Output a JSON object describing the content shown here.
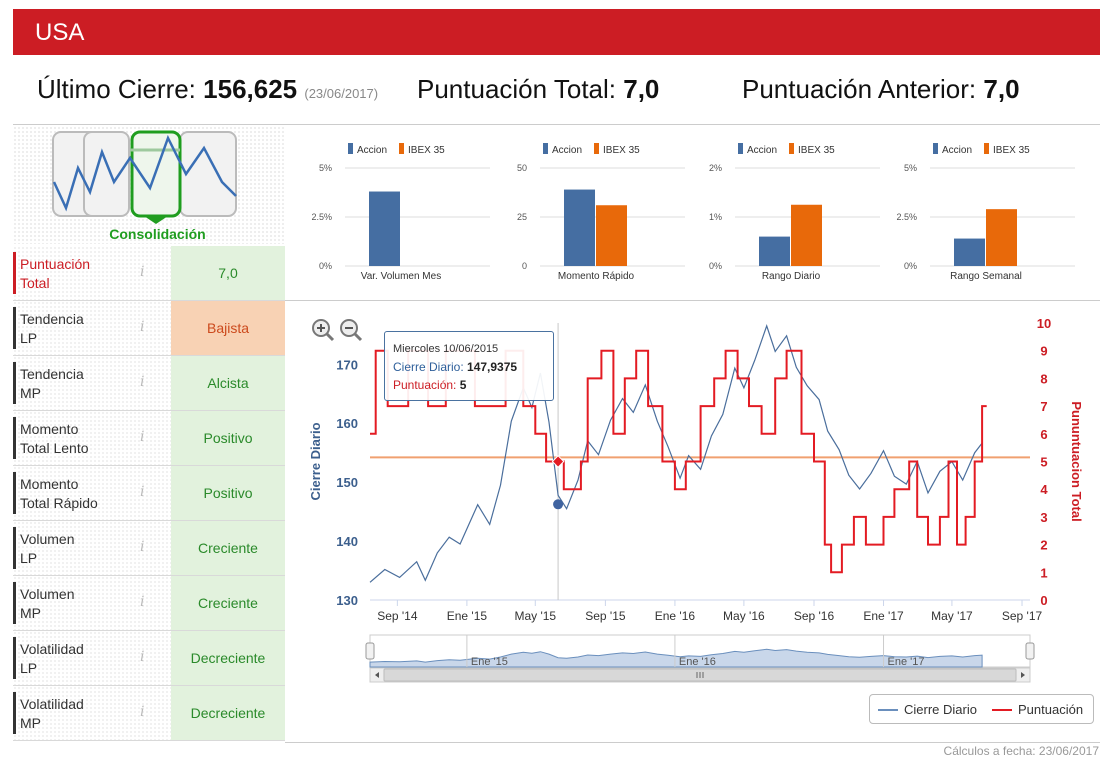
{
  "header": {
    "title": "USA"
  },
  "summary": {
    "last_close_label": "Último Cierre:",
    "last_close_value": "156,625",
    "last_close_date": "(23/06/2017)",
    "total_score_label": "Puntuación Total:",
    "total_score_value": "7,0",
    "prev_score_label": "Puntuación Anterior:",
    "prev_score_value": "7,0"
  },
  "pattern": {
    "label": "Consolidación",
    "icon": "consolidation-pattern-icon"
  },
  "indicators": [
    {
      "label_1": "Puntuación",
      "label_2": "Total",
      "value": "7,0",
      "status": "neutral"
    },
    {
      "label_1": "Tendencia",
      "label_2": "LP",
      "value": "Bajista",
      "status": "bad"
    },
    {
      "label_1": "Tendencia",
      "label_2": "MP",
      "value": "Alcista",
      "status": "good"
    },
    {
      "label_1": "Momento",
      "label_2": "Total Lento",
      "value": "Positivo",
      "status": "good"
    },
    {
      "label_1": "Momento",
      "label_2": "Total Rápido",
      "value": "Positivo",
      "status": "good"
    },
    {
      "label_1": "Volumen",
      "label_2": "LP",
      "value": "Creciente",
      "status": "good"
    },
    {
      "label_1": "Volumen",
      "label_2": "MP",
      "value": "Creciente",
      "status": "good"
    },
    {
      "label_1": "Volatilidad",
      "label_2": "LP",
      "value": "Decreciente",
      "status": "good"
    },
    {
      "label_1": "Volatilidad",
      "label_2": "MP",
      "value": "Decreciente",
      "status": "good"
    }
  ],
  "colors": {
    "accent": "#cc1d24",
    "accion": "#456ea2",
    "ibex": "#e8690a",
    "good_bg": "#e2f2dd",
    "bad_bg": "#f8d2b4",
    "avg_line": "#f0a070"
  },
  "chart_data": [
    {
      "type": "bar",
      "legend": [
        "Accion",
        "IBEX 35"
      ],
      "categories": [
        "Var. Volumen Mes"
      ],
      "yticks": [
        "0%",
        "2.5%",
        "5%"
      ],
      "ylim": [
        0,
        5
      ],
      "series": [
        {
          "name": "Accion",
          "values": [
            3.8
          ]
        },
        {
          "name": "IBEX 35",
          "values": [
            0
          ]
        }
      ]
    },
    {
      "type": "bar",
      "legend": [
        "Accion",
        "IBEX 35"
      ],
      "categories": [
        "Momento Rápido"
      ],
      "yticks": [
        "0",
        "25",
        "50"
      ],
      "ylim": [
        0,
        50
      ],
      "series": [
        {
          "name": "Accion",
          "values": [
            39
          ]
        },
        {
          "name": "IBEX 35",
          "values": [
            31
          ]
        }
      ]
    },
    {
      "type": "bar",
      "legend": [
        "Accion",
        "IBEX 35"
      ],
      "categories": [
        "Rango Diario"
      ],
      "yticks": [
        "0%",
        "1%",
        "2%"
      ],
      "ylim": [
        0,
        2
      ],
      "series": [
        {
          "name": "Accion",
          "values": [
            0.6
          ]
        },
        {
          "name": "IBEX 35",
          "values": [
            1.25
          ]
        }
      ]
    },
    {
      "type": "bar",
      "legend": [
        "Accion",
        "IBEX 35"
      ],
      "categories": [
        "Rango Semanal"
      ],
      "yticks": [
        "0%",
        "2.5%",
        "5%"
      ],
      "ylim": [
        0,
        5
      ],
      "series": [
        {
          "name": "Accion",
          "values": [
            1.4
          ]
        },
        {
          "name": "IBEX 35",
          "values": [
            2.9
          ]
        }
      ]
    },
    {
      "type": "line",
      "ylabel_left": "Cierre Diario",
      "ylabel_right": "Pununtuacion Total",
      "y_left_ticks": [
        "130",
        "140",
        "150",
        "160",
        "170"
      ],
      "y_left_lim": [
        130,
        177
      ],
      "y_right_ticks": [
        "0",
        "1",
        "2",
        "3",
        "4",
        "5",
        "6",
        "7",
        "8",
        "9",
        "10"
      ],
      "y_right_lim": [
        0,
        10
      ],
      "x_range": [
        "2014-07-15",
        "2017-09-15"
      ],
      "x_ticks": [
        {
          "date": "2014-09-01",
          "label": "Sep '14"
        },
        {
          "date": "2015-01-01",
          "label": "Ene '15"
        },
        {
          "date": "2015-05-01",
          "label": "May '15"
        },
        {
          "date": "2015-09-01",
          "label": "Sep '15"
        },
        {
          "date": "2016-01-01",
          "label": "Ene '16"
        },
        {
          "date": "2016-05-01",
          "label": "May '16"
        },
        {
          "date": "2016-09-01",
          "label": "Sep '16"
        },
        {
          "date": "2017-01-01",
          "label": "Ene '17"
        },
        {
          "date": "2017-05-01",
          "label": "May '17"
        },
        {
          "date": "2017-09-01",
          "label": "Sep '17"
        }
      ],
      "reference_line": 154.2,
      "series": [
        {
          "name": "Cierre Diario",
          "points": [
            [
              "2014-07-15",
              133
            ],
            [
              "2014-08-10",
              135
            ],
            [
              "2014-09-05",
              134
            ],
            [
              "2014-10-05",
              137
            ],
            [
              "2014-10-20",
              133
            ],
            [
              "2014-11-10",
              138
            ],
            [
              "2014-12-01",
              141
            ],
            [
              "2014-12-20",
              139
            ],
            [
              "2015-01-20",
              146
            ],
            [
              "2015-02-10",
              143
            ],
            [
              "2015-03-01",
              150
            ],
            [
              "2015-03-20",
              160
            ],
            [
              "2015-04-10",
              166
            ],
            [
              "2015-04-25",
              163
            ],
            [
              "2015-05-10",
              168
            ],
            [
              "2015-05-25",
              160
            ],
            [
              "2015-06-10",
              147.9375
            ],
            [
              "2015-06-25",
              146
            ],
            [
              "2015-07-15",
              150
            ],
            [
              "2015-08-01",
              157
            ],
            [
              "2015-08-20",
              155
            ],
            [
              "2015-09-10",
              160
            ],
            [
              "2015-10-01",
              164
            ],
            [
              "2015-10-20",
              162
            ],
            [
              "2015-11-10",
              167
            ],
            [
              "2015-12-01",
              160
            ],
            [
              "2015-12-20",
              156
            ],
            [
              "2016-01-10",
              151
            ],
            [
              "2016-01-25",
              154
            ],
            [
              "2016-02-15",
              152
            ],
            [
              "2016-03-05",
              158
            ],
            [
              "2016-03-25",
              162
            ],
            [
              "2016-04-15",
              169
            ],
            [
              "2016-05-01",
              166
            ],
            [
              "2016-05-20",
              171
            ],
            [
              "2016-06-10",
              176
            ],
            [
              "2016-06-25",
              172
            ],
            [
              "2016-07-15",
              175
            ],
            [
              "2016-08-01",
              170
            ],
            [
              "2016-08-20",
              166
            ],
            [
              "2016-09-10",
              164
            ],
            [
              "2016-09-25",
              159
            ],
            [
              "2016-10-15",
              155
            ],
            [
              "2016-11-01",
              151
            ],
            [
              "2016-11-20",
              149
            ],
            [
              "2016-12-10",
              152
            ],
            [
              "2017-01-01",
              155
            ],
            [
              "2017-01-20",
              151
            ],
            [
              "2017-02-10",
              150
            ],
            [
              "2017-03-01",
              153
            ],
            [
              "2017-03-20",
              148
            ],
            [
              "2017-04-10",
              152
            ],
            [
              "2017-05-01",
              154
            ],
            [
              "2017-05-20",
              150
            ],
            [
              "2017-06-10",
              155
            ],
            [
              "2017-06-23",
              156.625
            ]
          ]
        },
        {
          "name": "Puntuación",
          "steps": [
            [
              "2014-07-15",
              6
            ],
            [
              "2014-07-25",
              9
            ],
            [
              "2014-08-15",
              7
            ],
            [
              "2014-09-20",
              9
            ],
            [
              "2014-10-25",
              7
            ],
            [
              "2014-11-25",
              9
            ],
            [
              "2015-01-15",
              7
            ],
            [
              "2015-03-10",
              9
            ],
            [
              "2015-04-10",
              7
            ],
            [
              "2015-05-01",
              6
            ],
            [
              "2015-05-20",
              5
            ],
            [
              "2015-06-20",
              4
            ],
            [
              "2015-07-20",
              5
            ],
            [
              "2015-08-01",
              8
            ],
            [
              "2015-08-25",
              9
            ],
            [
              "2015-09-15",
              6
            ],
            [
              "2015-10-05",
              8
            ],
            [
              "2015-10-25",
              9
            ],
            [
              "2015-11-15",
              7
            ],
            [
              "2015-12-10",
              5
            ],
            [
              "2016-01-01",
              4
            ],
            [
              "2016-01-20",
              5
            ],
            [
              "2016-02-15",
              7
            ],
            [
              "2016-03-10",
              8
            ],
            [
              "2016-03-30",
              9
            ],
            [
              "2016-04-20",
              8
            ],
            [
              "2016-05-10",
              7
            ],
            [
              "2016-06-01",
              6
            ],
            [
              "2016-06-25",
              8
            ],
            [
              "2016-07-15",
              9
            ],
            [
              "2016-08-10",
              6
            ],
            [
              "2016-09-01",
              5
            ],
            [
              "2016-09-20",
              2
            ],
            [
              "2016-10-01",
              1
            ],
            [
              "2016-10-20",
              2
            ],
            [
              "2016-11-10",
              3
            ],
            [
              "2016-12-01",
              2
            ],
            [
              "2017-01-01",
              3
            ],
            [
              "2017-01-20",
              4
            ],
            [
              "2017-02-15",
              5
            ],
            [
              "2017-03-01",
              3
            ],
            [
              "2017-03-20",
              2
            ],
            [
              "2017-04-10",
              3
            ],
            [
              "2017-04-25",
              5
            ],
            [
              "2017-05-10",
              2
            ],
            [
              "2017-05-25",
              3
            ],
            [
              "2017-06-10",
              5
            ],
            [
              "2017-06-23",
              7
            ]
          ]
        }
      ],
      "tooltip": {
        "date": "2015-06-10",
        "date_label": "Miercoles 10/06/2015",
        "close_label": "Cierre Diario:",
        "close_value": "147,9375",
        "score_label": "Puntuación:",
        "score_value": "5"
      },
      "navigator_ticks": [
        {
          "date": "2015-01-01",
          "label": "Ene '15"
        },
        {
          "date": "2016-01-01",
          "label": "Ene '16"
        },
        {
          "date": "2017-01-01",
          "label": "Ene '17"
        }
      ]
    }
  ],
  "legend": {
    "close_label": "Cierre Diario",
    "score_label": "Puntuación"
  },
  "footer": {
    "calc_date": "Cálculos a fecha: 23/06/2017"
  }
}
